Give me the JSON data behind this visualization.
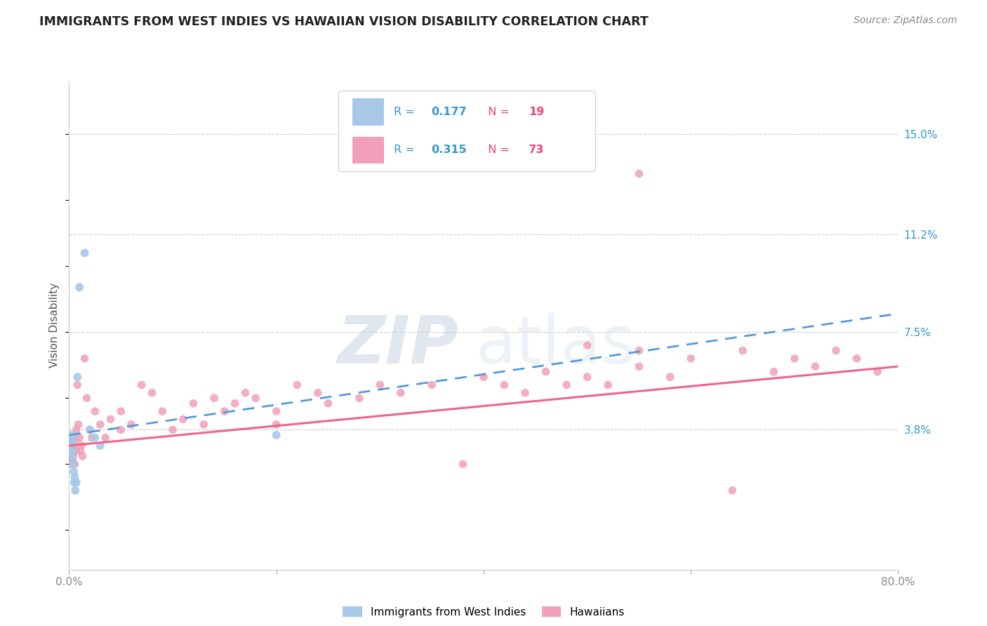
{
  "title": "IMMIGRANTS FROM WEST INDIES VS HAWAIIAN VISION DISABILITY CORRELATION CHART",
  "source": "Source: ZipAtlas.com",
  "ylabel": "Vision Disability",
  "xlim": [
    0.0,
    80.0
  ],
  "ylim": [
    -1.5,
    17.0
  ],
  "ytick_positions": [
    3.8,
    7.5,
    11.2,
    15.0
  ],
  "ytick_labels": [
    "3.8%",
    "7.5%",
    "11.2%",
    "15.0%"
  ],
  "grid_color": "#cccccc",
  "background_color": "#ffffff",
  "watermark_zip": "ZIP",
  "watermark_atlas": "atlas",
  "legend_label1": "Immigrants from West Indies",
  "legend_label2": "Hawaiians",
  "blue_color": "#a8c8e8",
  "pink_color": "#f0a0b8",
  "blue_line_color": "#5599dd",
  "pink_line_color": "#ee6688",
  "r_color": "#3399cc",
  "n_color": "#ee4477",
  "blue_scatter_x": [
    0.15,
    0.2,
    0.25,
    0.3,
    0.35,
    0.4,
    0.4,
    0.45,
    0.5,
    0.55,
    0.6,
    0.7,
    0.8,
    1.0,
    1.5,
    2.0,
    2.5,
    3.0,
    20.0
  ],
  "blue_scatter_y": [
    3.3,
    3.6,
    3.0,
    2.8,
    3.5,
    3.2,
    2.5,
    2.2,
    1.8,
    2.0,
    1.5,
    1.8,
    5.8,
    9.2,
    10.5,
    3.8,
    3.5,
    3.2,
    3.6
  ],
  "pink_scatter_x": [
    0.1,
    0.15,
    0.2,
    0.25,
    0.3,
    0.35,
    0.4,
    0.4,
    0.45,
    0.5,
    0.55,
    0.6,
    0.65,
    0.7,
    0.8,
    0.9,
    1.0,
    1.1,
    1.2,
    1.3,
    1.5,
    1.7,
    2.0,
    2.2,
    2.5,
    3.0,
    3.5,
    4.0,
    5.0,
    5.0,
    6.0,
    7.0,
    8.0,
    9.0,
    10.0,
    11.0,
    12.0,
    13.0,
    14.0,
    15.0,
    16.0,
    17.0,
    18.0,
    20.0,
    20.0,
    22.0,
    24.0,
    25.0,
    28.0,
    30.0,
    32.0,
    35.0,
    38.0,
    40.0,
    42.0,
    44.0,
    46.0,
    48.0,
    50.0,
    52.0,
    55.0,
    58.0,
    60.0,
    64.0,
    65.0,
    68.0,
    70.0,
    72.0,
    74.0,
    76.0,
    78.0,
    50.0,
    55.0
  ],
  "pink_scatter_y": [
    3.0,
    2.5,
    2.8,
    3.2,
    3.0,
    2.6,
    2.8,
    3.5,
    3.2,
    3.0,
    2.5,
    3.4,
    3.0,
    3.8,
    5.5,
    4.0,
    3.5,
    3.0,
    3.2,
    2.8,
    6.5,
    5.0,
    3.8,
    3.5,
    4.5,
    4.0,
    3.5,
    4.2,
    3.8,
    4.5,
    4.0,
    5.5,
    5.2,
    4.5,
    3.8,
    4.2,
    4.8,
    4.0,
    5.0,
    4.5,
    4.8,
    5.2,
    5.0,
    4.5,
    4.0,
    5.5,
    5.2,
    4.8,
    5.0,
    5.5,
    5.2,
    5.5,
    2.5,
    5.8,
    5.5,
    5.2,
    6.0,
    5.5,
    5.8,
    5.5,
    6.2,
    5.8,
    6.5,
    1.5,
    6.8,
    6.0,
    6.5,
    6.2,
    6.8,
    6.5,
    6.0,
    7.0,
    6.8
  ],
  "pink_outlier_x": 55.0,
  "pink_outlier_y": 13.5,
  "blue_trend_x0": 0.0,
  "blue_trend_y0": 3.6,
  "blue_trend_x1": 80.0,
  "blue_trend_y1": 8.2,
  "pink_trend_x0": 0.0,
  "pink_trend_y0": 3.2,
  "pink_trend_x1": 80.0,
  "pink_trend_y1": 6.2
}
